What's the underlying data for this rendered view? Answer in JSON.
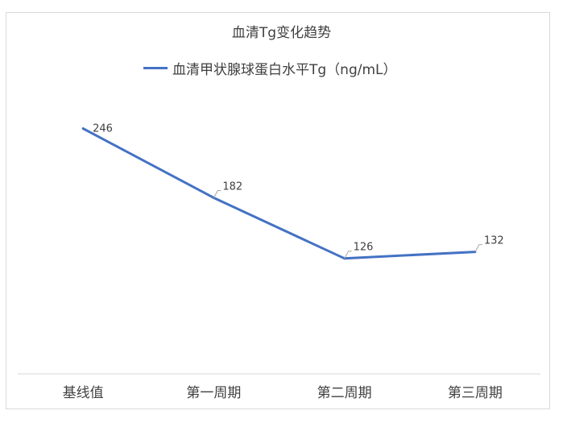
{
  "chart_data": {
    "type": "line",
    "title": "血清Tg变化趋势",
    "categories": [
      "基线值",
      "第一周期",
      "第二周期",
      "第三周期"
    ],
    "series": [
      {
        "name": "血清甲状腺球蛋白水平Tg（ng/mL）",
        "values": [
          246,
          182,
          126,
          132
        ],
        "color": "#4472c4"
      }
    ],
    "data_labels": [
      "246",
      "182",
      "126",
      "132"
    ],
    "xlabel": "",
    "ylabel": "",
    "ylim": [
      0,
      300
    ],
    "grid": false,
    "legend_position": "top"
  }
}
